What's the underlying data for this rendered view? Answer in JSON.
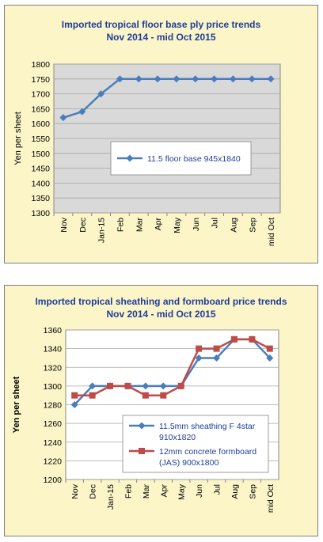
{
  "chart_data": [
    {
      "type": "line",
      "title": "Imported tropical floor base ply price trends",
      "subtitle": "Nov 2014 - mid Oct 2015",
      "xlabel": "",
      "ylabel": "Yen per sheet",
      "categories": [
        "Nov",
        "Dec",
        "Jan-15",
        "Feb",
        "Mar",
        "Apr",
        "May",
        "Jun",
        "Jul",
        "Aug",
        "Sep",
        "mid Oct"
      ],
      "yticks": [
        "1800",
        "1750",
        "1700",
        "1650",
        "1600",
        "1550",
        "1500",
        "1450",
        "1400",
        "1350",
        "1300"
      ],
      "ylim": [
        1300,
        1800
      ],
      "grid": "horizontal",
      "legend_position": "center-right",
      "colors": {
        "plot_bg": "#d9d9d9",
        "panel_bg": "#fbf5c8",
        "title": "#1f3d99"
      },
      "series": [
        {
          "name": "11.5 floor base 945x1840",
          "color": "#4a7ebb",
          "marker": "diamond",
          "values": [
            1620,
            1640,
            1700,
            1750,
            1750,
            1750,
            1750,
            1750,
            1750,
            1750,
            1750,
            1750
          ]
        }
      ]
    },
    {
      "type": "line",
      "title": "Imported tropical sheathing and formboard price trends",
      "subtitle": "Nov 2014 - mid Oct 2015",
      "xlabel": "",
      "ylabel": "Yen per sheet",
      "categories": [
        "Nov",
        "Dec",
        "Jan-15",
        "Feb",
        "Mar",
        "Apr",
        "May",
        "Jun",
        "Jul",
        "Aug",
        "Sep",
        "mid Oct"
      ],
      "yticks": [
        "1360",
        "1340",
        "1320",
        "1300",
        "1280",
        "1260",
        "1240",
        "1220",
        "1200"
      ],
      "ylim": [
        1200,
        1360
      ],
      "grid": "horizontal",
      "legend_position": "bottom-right",
      "colors": {
        "plot_bg": "#ffffff",
        "panel_bg": "#fbf5c8",
        "title": "#1f3d99"
      },
      "series": [
        {
          "name": "11.5mm sheathing F 4star 910x1820",
          "name_lines": [
            "11.5mm sheathing F 4star",
            "910x1820"
          ],
          "color": "#4a7ebb",
          "marker": "diamond",
          "values": [
            1280,
            1300,
            1300,
            1300,
            1300,
            1300,
            1300,
            1330,
            1330,
            1350,
            1350,
            1330
          ]
        },
        {
          "name": "12mm concrete formboard (JAS) 900x1800",
          "name_lines": [
            "12mm concrete formboard",
            "(JAS) 900x1800"
          ],
          "color": "#be4b48",
          "marker": "square",
          "values": [
            1290,
            1290,
            1300,
            1300,
            1290,
            1290,
            1300,
            1340,
            1340,
            1350,
            1350,
            1340
          ]
        }
      ]
    }
  ]
}
